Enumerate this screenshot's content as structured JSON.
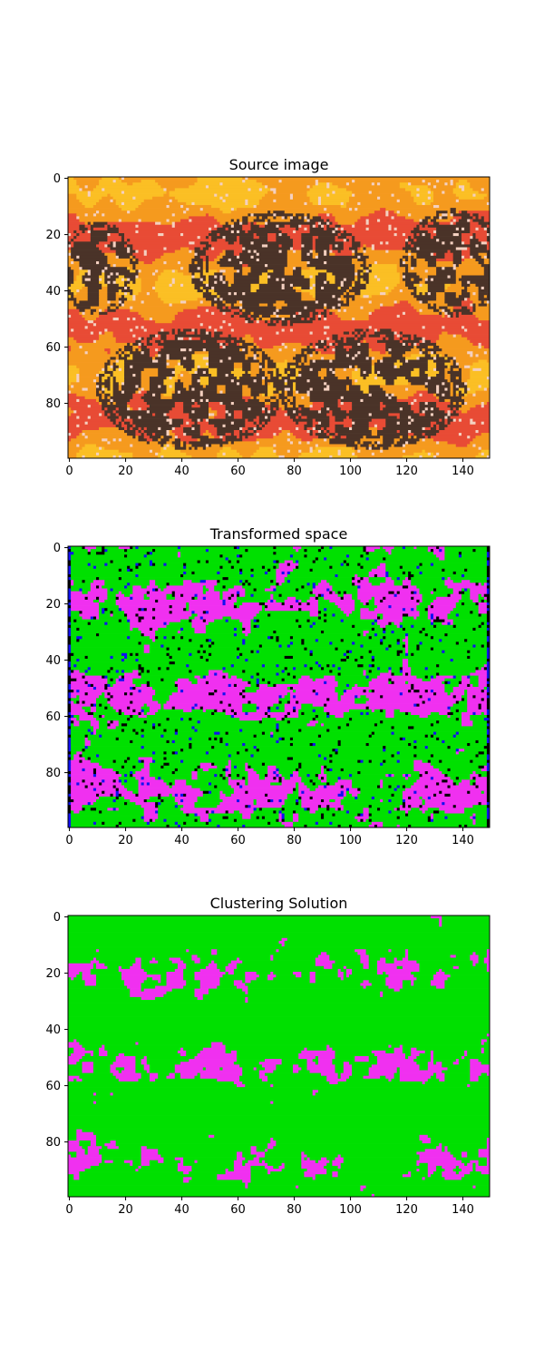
{
  "palette": {
    "green": "#00e000",
    "magenta": "#f030f0",
    "black": "#000000",
    "blue": "#1010f0",
    "dark_brown": "#4a3328",
    "red_orange": "#e84b35",
    "orange": "#f59a1e",
    "yellow": "#fbbf24",
    "light_line": "#f4d0c0",
    "axis": "#000000"
  },
  "chart_data": [
    {
      "type": "heatmap",
      "title": "Source image",
      "kind": "rgb-image",
      "image_shape": [
        100,
        150
      ],
      "xlim": [
        -0.5,
        149.5
      ],
      "ylim": [
        99.5,
        -0.5
      ],
      "xticks": [
        0,
        20,
        40,
        60,
        80,
        100,
        120,
        140
      ],
      "yticks": [
        0,
        20,
        40,
        60,
        80
      ],
      "colors": [
        "dark_brown",
        "red_orange",
        "orange",
        "yellow",
        "light_line"
      ],
      "dark_ellipses": [
        {
          "cx": 10,
          "cy": 32,
          "rx": 12,
          "ry": 14
        },
        {
          "cx": 75,
          "cy": 32,
          "rx": 27,
          "ry": 17
        },
        {
          "cx": 137,
          "cy": 30,
          "rx": 16,
          "ry": 16
        },
        {
          "cx": 43,
          "cy": 75,
          "rx": 28,
          "ry": 18
        },
        {
          "cx": 108,
          "cy": 75,
          "rx": 28,
          "ry": 18
        }
      ]
    },
    {
      "type": "heatmap",
      "title": "Transformed space",
      "kind": "categorical-image",
      "image_shape": [
        100,
        150
      ],
      "xlim": [
        -0.5,
        149.5
      ],
      "ylim": [
        99.5,
        -0.5
      ],
      "xticks": [
        0,
        20,
        40,
        60,
        80,
        100,
        120,
        140
      ],
      "yticks": [
        0,
        20,
        40,
        60,
        80
      ],
      "colors": [
        "green",
        "magenta",
        "black",
        "blue"
      ]
    },
    {
      "type": "heatmap",
      "title": "Clustering Solution",
      "kind": "cluster-labels",
      "image_shape": [
        100,
        150
      ],
      "xlim": [
        -0.5,
        149.5
      ],
      "ylim": [
        99.5,
        -0.5
      ],
      "xticks": [
        0,
        20,
        40,
        60,
        80,
        100,
        120,
        140
      ],
      "yticks": [
        0,
        20,
        40,
        60,
        80
      ],
      "clusters": 2,
      "colors": [
        "green",
        "magenta"
      ]
    }
  ]
}
